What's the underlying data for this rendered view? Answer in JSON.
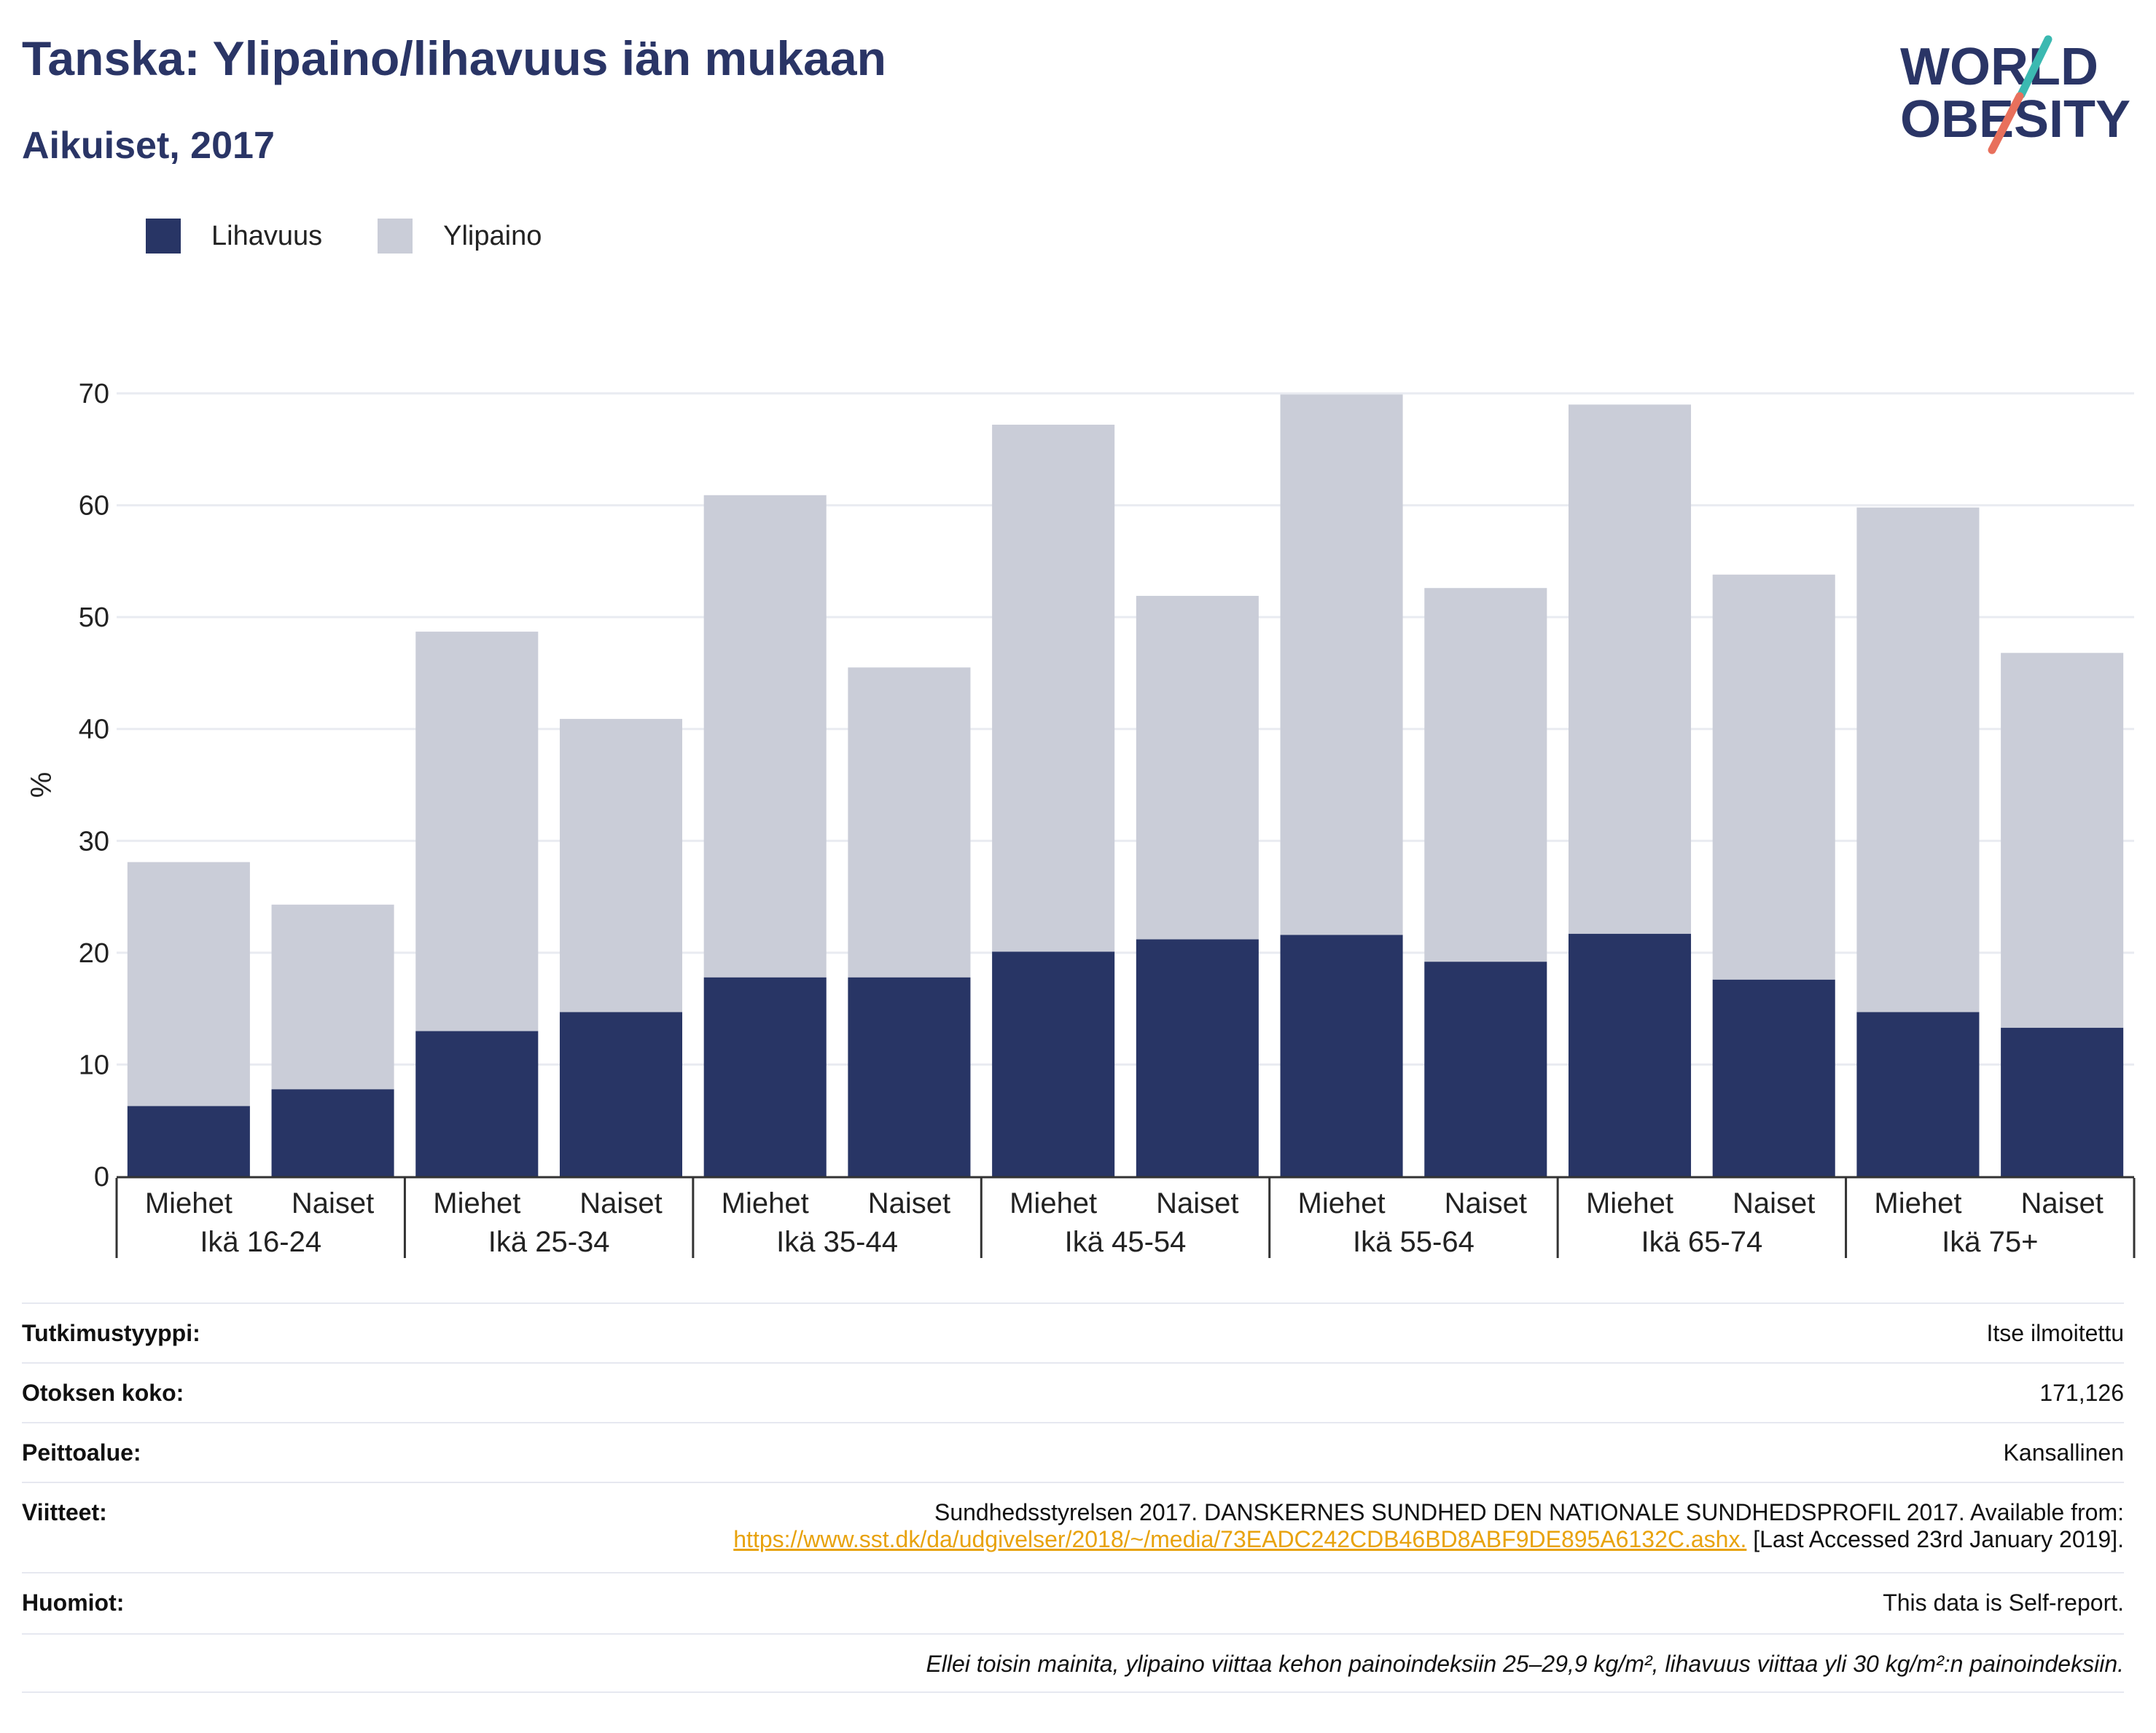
{
  "header": {
    "title": "Tanska: Ylipaino/lihavuus iän mukaan",
    "subtitle": "Aikuiset, 2017"
  },
  "logo": {
    "line1": "WORLD",
    "line2": "OBESITY",
    "icon": "world-obesity-logo"
  },
  "legend": [
    {
      "label": "Lihavuus",
      "color": "#283565"
    },
    {
      "label": "Ylipaino",
      "color": "#cacdd8"
    }
  ],
  "chart_data": {
    "type": "bar",
    "stacked": true,
    "ylabel": "%",
    "ylim": [
      0,
      70
    ],
    "yticks": [
      0,
      10,
      20,
      30,
      40,
      50,
      60,
      70
    ],
    "grid": true,
    "legend_position": "top-left",
    "categories": [
      "Miehet",
      "Naiset",
      "Miehet",
      "Naiset",
      "Miehet",
      "Naiset",
      "Miehet",
      "Naiset",
      "Miehet",
      "Naiset",
      "Miehet",
      "Naiset",
      "Miehet",
      "Naiset"
    ],
    "groups": [
      "Ikä 16-24",
      "Ikä 25-34",
      "Ikä 35-44",
      "Ikä 45-54",
      "Ikä 55-64",
      "Ikä 65-74",
      "Ikä 75+"
    ],
    "series": [
      {
        "name": "Lihavuus",
        "color": "#283565",
        "values": [
          6.3,
          7.8,
          13.0,
          14.7,
          17.8,
          17.8,
          20.1,
          21.2,
          21.6,
          19.2,
          21.7,
          17.6,
          14.7,
          13.3
        ]
      },
      {
        "name": "Ylipaino",
        "color": "#cacdd8",
        "values": [
          21.8,
          16.5,
          35.7,
          26.2,
          43.1,
          27.7,
          47.1,
          30.7,
          48.3,
          33.4,
          47.3,
          36.2,
          45.1,
          33.5
        ]
      }
    ]
  },
  "meta": {
    "study_type_label": "Tutkimustyyppi:",
    "study_type": "Itse ilmoitettu",
    "sample_label": "Otoksen koko:",
    "sample": "171,126",
    "coverage_label": "Peittoalue:",
    "coverage": "Kansallinen",
    "refs_label": "Viitteet:",
    "ref_text": "Sundhedsstyrelsen 2017. DANSKERNES SUNDHED DEN NATIONALE SUNDHEDSPROFIL 2017. Available from:",
    "ref_url": "https://www.sst.dk/da/udgivelser/2018/~/media/73EADC242CDB46BD8ABF9DE895A6132C.ashx.",
    "ref_accessed": "[Last Accessed 23rd January 2019].",
    "notes_label": "Huomiot:",
    "notes": "This data is Self-report.",
    "footnote": "Ellei toisin mainita, ylipaino viittaa kehon painoindeksiin 25–29,9 kg/m², lihavuus viittaa yli 30 kg/m²:n painoindeksiin."
  }
}
